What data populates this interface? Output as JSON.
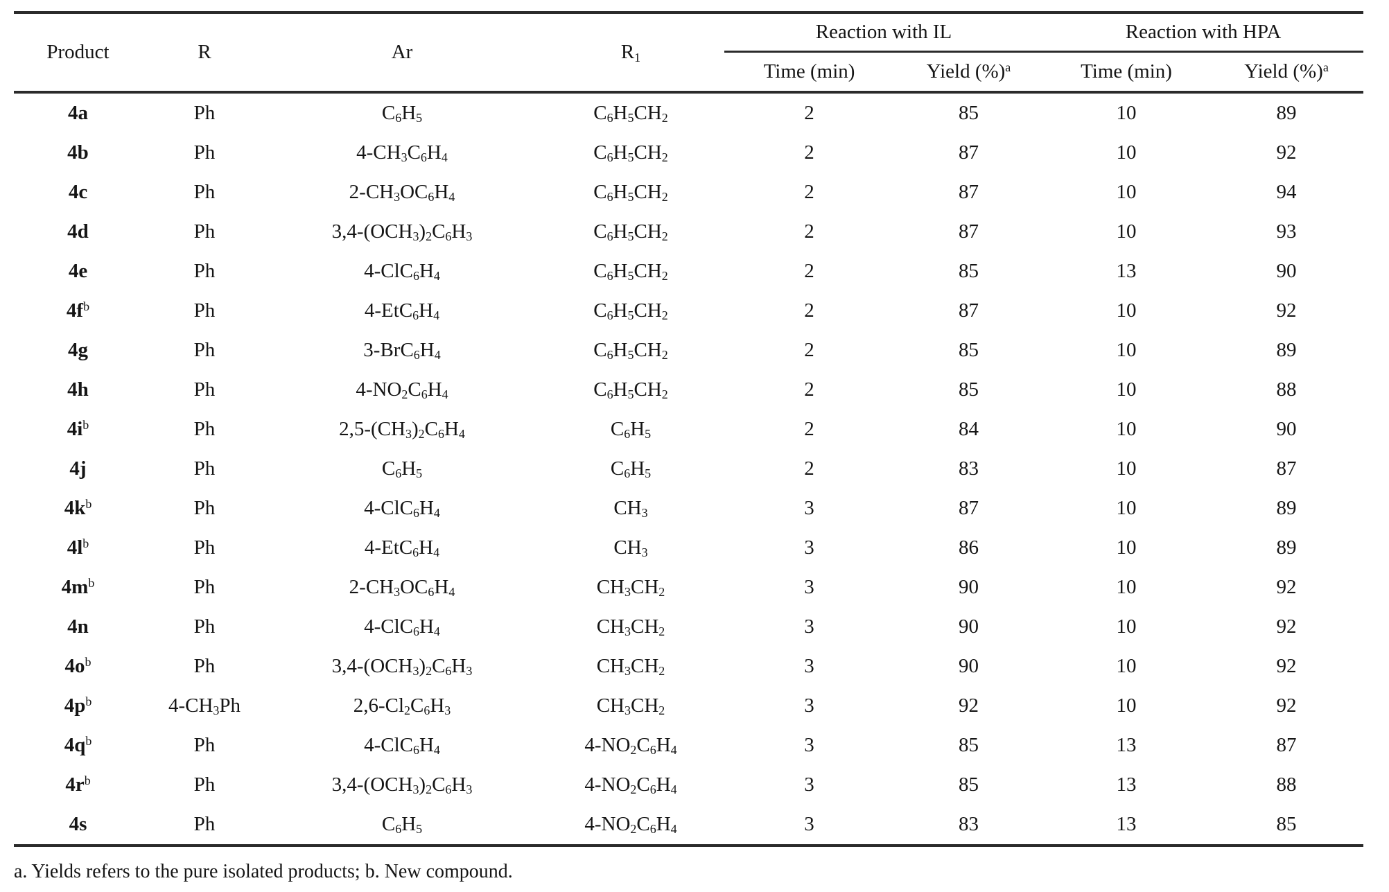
{
  "page": {
    "background": "#ffffff",
    "text_color": "#151515",
    "rule_color": "#2b2b2b"
  },
  "table": {
    "header": {
      "product": "Product",
      "r": "R",
      "ar": "Ar",
      "r1": "R_1",
      "group_il": "Reaction with IL",
      "group_hpa": "Reaction with HPA",
      "time": "Time (min)",
      "yield": "Yield (%)^a"
    },
    "rows": [
      {
        "product": "4a",
        "r": "Ph",
        "ar": "C_6H_5",
        "r1": "C_6H_5CH_2",
        "il_time": "2",
        "il_yield": "85",
        "hpa_time": "10",
        "hpa_yield": "89"
      },
      {
        "product": "4b",
        "r": "Ph",
        "ar": "4-CH_3C_6H_4",
        "r1": "C_6H_5CH_2",
        "il_time": "2",
        "il_yield": "87",
        "hpa_time": "10",
        "hpa_yield": "92"
      },
      {
        "product": "4c",
        "r": "Ph",
        "ar": "2-CH_3OC_6H_4",
        "r1": "C_6H_5CH_2",
        "il_time": "2",
        "il_yield": "87",
        "hpa_time": "10",
        "hpa_yield": "94"
      },
      {
        "product": "4d",
        "r": "Ph",
        "ar": "3,4-(OCH_3)_2C_6H_3",
        "r1": "C_6H_5CH_2",
        "il_time": "2",
        "il_yield": "87",
        "hpa_time": "10",
        "hpa_yield": "93"
      },
      {
        "product": "4e",
        "r": "Ph",
        "ar": "4-ClC_6H_4",
        "r1": "C_6H_5CH_2",
        "il_time": "2",
        "il_yield": "85",
        "hpa_time": "13",
        "hpa_yield": "90"
      },
      {
        "product": "4f^b",
        "r": "Ph",
        "ar": "4-EtC_6H_4",
        "r1": "C_6H_5CH_2",
        "il_time": "2",
        "il_yield": "87",
        "hpa_time": "10",
        "hpa_yield": "92"
      },
      {
        "product": "4g",
        "r": "Ph",
        "ar": "3-BrC_6H_4",
        "r1": "C_6H_5CH_2",
        "il_time": "2",
        "il_yield": "85",
        "hpa_time": "10",
        "hpa_yield": "89"
      },
      {
        "product": "4h",
        "r": "Ph",
        "ar": "4-NO_2C_6H_4",
        "r1": "C_6H_5CH_2",
        "il_time": "2",
        "il_yield": "85",
        "hpa_time": "10",
        "hpa_yield": "88"
      },
      {
        "product": "4i^b",
        "r": "Ph",
        "ar": "2,5-(CH_3)_2C_6H_4",
        "r1": "C_6H_5",
        "il_time": "2",
        "il_yield": "84",
        "hpa_time": "10",
        "hpa_yield": "90"
      },
      {
        "product": "4j",
        "r": "Ph",
        "ar": "C_6H_5",
        "r1": "C_6H_5",
        "il_time": "2",
        "il_yield": "83",
        "hpa_time": "10",
        "hpa_yield": "87"
      },
      {
        "product": "4k^b",
        "r": "Ph",
        "ar": "4-ClC_6H_4",
        "r1": "CH_3",
        "il_time": "3",
        "il_yield": "87",
        "hpa_time": "10",
        "hpa_yield": "89"
      },
      {
        "product": "4l^b",
        "r": "Ph",
        "ar": "4-EtC_6H_4",
        "r1": "CH_3",
        "il_time": "3",
        "il_yield": "86",
        "hpa_time": "10",
        "hpa_yield": "89"
      },
      {
        "product": "4m^b",
        "r": "Ph",
        "ar": "2-CH_3OC_6H_4",
        "r1": "CH_3CH_2",
        "il_time": "3",
        "il_yield": "90",
        "hpa_time": "10",
        "hpa_yield": "92"
      },
      {
        "product": "4n",
        "r": "Ph",
        "ar": "4-ClC_6H_4",
        "r1": "CH_3CH_2",
        "il_time": "3",
        "il_yield": "90",
        "hpa_time": "10",
        "hpa_yield": "92"
      },
      {
        "product": "4o^b",
        "r": "Ph",
        "ar": "3,4-(OCH_3)_2C_6H_3",
        "r1": "CH_3CH_2",
        "il_time": "3",
        "il_yield": "90",
        "hpa_time": "10",
        "hpa_yield": "92"
      },
      {
        "product": "4p^b",
        "r": "4-CH_3Ph",
        "ar": "2,6-Cl_2C_6H_3",
        "r1": "CH_3CH_2",
        "il_time": "3",
        "il_yield": "92",
        "hpa_time": "10",
        "hpa_yield": "92"
      },
      {
        "product": "4q^b",
        "r": "Ph",
        "ar": "4-ClC_6H_4",
        "r1": "4-NO_2C_6H_4",
        "il_time": "3",
        "il_yield": "85",
        "hpa_time": "13",
        "hpa_yield": "87"
      },
      {
        "product": "4r^b",
        "r": "Ph",
        "ar": "3,4-(OCH_3)_2C_6H_3",
        "r1": "4-NO_2C_6H_4",
        "il_time": "3",
        "il_yield": "85",
        "hpa_time": "13",
        "hpa_yield": "88"
      },
      {
        "product": "4s",
        "r": "Ph",
        "ar": "C_6H_5",
        "r1": "4-NO_2C_6H_4",
        "il_time": "3",
        "il_yield": "83",
        "hpa_time": "13",
        "hpa_yield": "85"
      }
    ],
    "footnote": "a. Yields refers to the pure isolated products; b. New compound."
  }
}
